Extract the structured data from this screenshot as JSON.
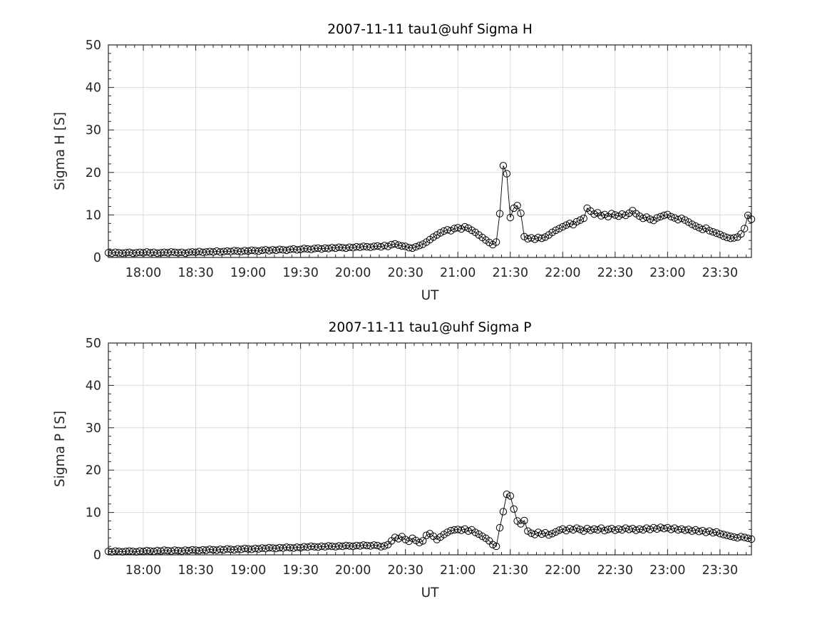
{
  "figure": {
    "background": "#ffffff",
    "axis_color": "#262626",
    "grid_color": "#dbdbdb",
    "marker_color": "#000000",
    "line_color": "#000000"
  },
  "chart_data": [
    {
      "type": "line",
      "title": "2007-11-11  tau1@uhf Sigma H",
      "xlabel": "UT",
      "ylabel": "Sigma H [S]",
      "ylim": [
        0,
        50
      ],
      "yticks": [
        0,
        10,
        20,
        30,
        40,
        50
      ],
      "y_minor_step": 2,
      "x_start_minutes": 1060,
      "x_end_minutes": 1428,
      "x_step_minutes": 2,
      "x_minor_step_minutes": 5,
      "x_major_ticks": [
        "18:00",
        "18:30",
        "19:00",
        "19:30",
        "20:00",
        "20:30",
        "21:00",
        "21:30",
        "22:00",
        "22:30",
        "23:00",
        "23:30"
      ],
      "grid": true,
      "legend": null,
      "marker": "circle",
      "values": [
        1.1,
        1.0,
        1.2,
        1.1,
        1.0,
        1.1,
        1.2,
        1.0,
        1.1,
        1.2,
        1.1,
        1.3,
        1.1,
        1.2,
        1.0,
        1.1,
        1.2,
        1.1,
        1.3,
        1.2,
        1.1,
        1.2,
        1.0,
        1.2,
        1.3,
        1.2,
        1.4,
        1.2,
        1.3,
        1.4,
        1.3,
        1.5,
        1.3,
        1.4,
        1.5,
        1.4,
        1.6,
        1.5,
        1.4,
        1.6,
        1.5,
        1.7,
        1.6,
        1.5,
        1.7,
        1.8,
        1.6,
        1.8,
        1.7,
        1.9,
        1.8,
        1.7,
        1.9,
        2.0,
        1.8,
        1.9,
        2.1,
        2.0,
        1.9,
        2.1,
        2.2,
        2.0,
        2.2,
        2.1,
        2.3,
        2.2,
        2.4,
        2.3,
        2.2,
        2.4,
        2.3,
        2.5,
        2.4,
        2.6,
        2.5,
        2.4,
        2.6,
        2.7,
        2.5,
        2.8,
        2.6,
        3.0,
        3.2,
        2.9,
        2.7,
        2.6,
        2.3,
        2.2,
        2.5,
        2.8,
        3.1,
        3.6,
        4.2,
        4.8,
        5.3,
        5.8,
        6.2,
        6.5,
        6.3,
        6.8,
        7.0,
        6.7,
        7.2,
        6.9,
        6.4,
        5.9,
        5.3,
        4.7,
        4.1,
        3.5,
        3.0,
        3.6,
        10.3,
        21.6,
        19.7,
        9.4,
        11.6,
        12.2,
        10.4,
        4.9,
        4.4,
        4.6,
        4.3,
        4.7,
        4.5,
        4.8,
        5.3,
        5.9,
        6.4,
        6.8,
        7.2,
        7.6,
        8.0,
        7.7,
        8.4,
        8.8,
        9.2,
        11.6,
        10.9,
        10.2,
        10.5,
        9.8,
        10.1,
        9.6,
        10.3,
        10.0,
        9.7,
        10.2,
        9.9,
        10.4,
        11.0,
        10.3,
        9.7,
        9.2,
        9.5,
        9.0,
        8.7,
        9.3,
        9.6,
        9.9,
        10.1,
        9.6,
        9.3,
        8.9,
        9.2,
        8.8,
        8.3,
        7.8,
        7.4,
        7.0,
        6.6,
        6.9,
        6.3,
        6.0,
        5.7,
        5.4,
        5.0,
        4.7,
        4.5,
        4.6,
        4.8,
        5.5,
        6.8,
        9.9,
        9.0
      ]
    },
    {
      "type": "line",
      "title": "2007-11-11  tau1@uhf Sigma P",
      "xlabel": "UT",
      "ylabel": "Sigma P [S]",
      "ylim": [
        0,
        50
      ],
      "yticks": [
        0,
        10,
        20,
        30,
        40,
        50
      ],
      "y_minor_step": 2,
      "x_start_minutes": 1060,
      "x_end_minutes": 1428,
      "x_step_minutes": 2,
      "x_minor_step_minutes": 5,
      "x_major_ticks": [
        "18:00",
        "18:30",
        "19:00",
        "19:30",
        "20:00",
        "20:30",
        "21:00",
        "21:30",
        "22:00",
        "22:30",
        "23:00",
        "23:30"
      ],
      "grid": true,
      "legend": null,
      "marker": "circle",
      "values": [
        0.8,
        0.7,
        0.9,
        0.8,
        0.7,
        0.8,
        0.9,
        0.8,
        0.7,
        0.9,
        0.8,
        1.0,
        0.9,
        0.8,
        1.0,
        0.9,
        1.1,
        1.0,
        0.9,
        1.1,
        1.0,
        0.9,
        1.1,
        1.0,
        1.2,
        1.1,
        1.0,
        1.2,
        1.1,
        1.3,
        1.2,
        1.1,
        1.3,
        1.2,
        1.4,
        1.3,
        1.2,
        1.4,
        1.3,
        1.5,
        1.4,
        1.3,
        1.5,
        1.4,
        1.6,
        1.5,
        1.7,
        1.6,
        1.5,
        1.7,
        1.6,
        1.8,
        1.7,
        1.6,
        1.8,
        1.7,
        1.9,
        1.8,
        2.0,
        1.9,
        1.8,
        2.0,
        1.9,
        2.1,
        2.0,
        1.9,
        2.1,
        2.0,
        2.2,
        2.1,
        2.0,
        2.2,
        2.1,
        2.3,
        2.2,
        2.1,
        2.3,
        2.2,
        1.9,
        2.1,
        2.4,
        3.3,
        4.1,
        3.8,
        4.3,
        3.6,
        3.2,
        3.9,
        3.4,
        2.9,
        3.3,
        4.6,
        5.0,
        4.4,
        3.6,
        4.2,
        4.8,
        5.3,
        5.7,
        5.9,
        6.0,
        5.8,
        6.1,
        5.6,
        5.9,
        5.3,
        4.9,
        4.4,
        3.9,
        3.3,
        2.4,
        2.0,
        6.4,
        10.2,
        14.3,
        13.9,
        10.8,
        8.0,
        7.3,
        8.1,
        5.6,
        5.1,
        4.8,
        5.3,
        4.9,
        5.2,
        4.7,
        5.0,
        5.4,
        5.8,
        6.1,
        5.7,
        6.2,
        5.9,
        6.3,
        6.0,
        5.6,
        6.2,
        5.8,
        6.1,
        5.9,
        6.3,
        5.7,
        6.0,
        6.2,
        5.8,
        6.1,
        5.9,
        6.3,
        6.0,
        6.2,
        5.8,
        6.1,
        5.9,
        6.3,
        6.0,
        6.4,
        6.1,
        6.5,
        6.2,
        6.4,
        6.0,
        6.3,
        5.9,
        6.1,
        5.8,
        6.0,
        5.6,
        5.9,
        5.5,
        5.7,
        5.3,
        5.6,
        5.2,
        5.4,
        5.0,
        4.8,
        4.6,
        4.4,
        4.2,
        4.0,
        4.3,
        4.1,
        3.9,
        3.7
      ]
    }
  ]
}
